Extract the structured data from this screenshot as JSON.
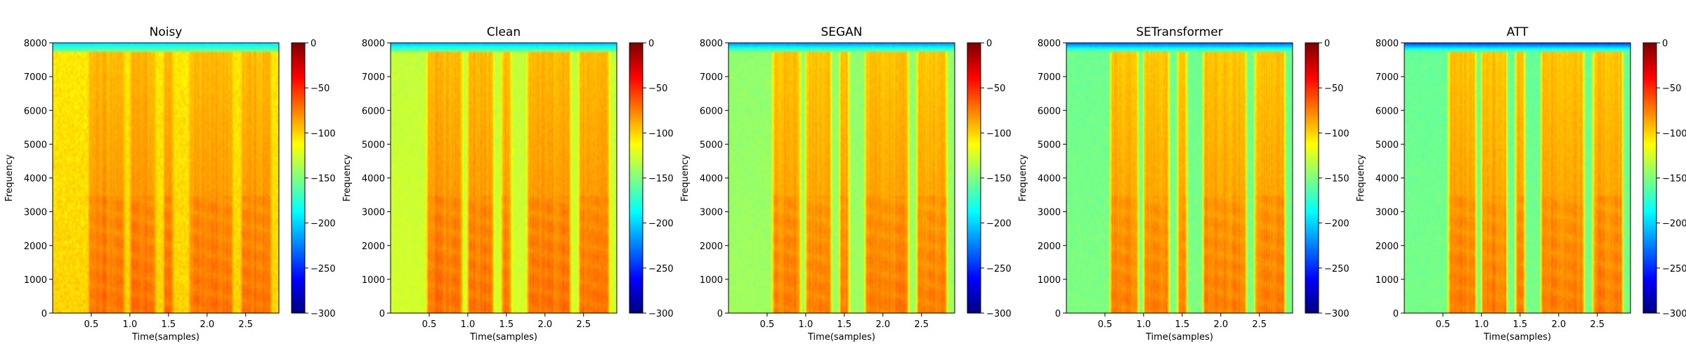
{
  "chart_data": [
    {
      "type": "heatmap",
      "title": "Noisy",
      "xlabel": "Time(samples)",
      "ylabel": "Frequency",
      "x_range": [
        0,
        2.93
      ],
      "ylim": [
        0,
        8000
      ],
      "x_ticks": [
        0.5,
        1.0,
        1.5,
        2.0,
        2.5
      ],
      "x_tick_labels": [
        "0.5",
        "1.0",
        "1.5",
        "2.0",
        "2.5"
      ],
      "y_ticks": [
        0,
        1000,
        2000,
        3000,
        4000,
        5000,
        6000,
        7000,
        8000
      ],
      "y_tick_labels": [
        "0",
        "1000",
        "2000",
        "3000",
        "4000",
        "5000",
        "6000",
        "7000",
        "8000"
      ],
      "colorbar": {
        "colormap": "jet",
        "range": [
          -300,
          0
        ],
        "ticks": [
          0,
          -50,
          -100,
          -150,
          -200,
          -250,
          -300
        ],
        "tick_labels": [
          "0",
          "−50",
          "−100",
          "−150",
          "−200",
          "−250",
          "−300"
        ]
      },
      "speech_activity": [
        [
          0.45,
          0.95
        ],
        [
          0.98,
          1.35
        ],
        [
          1.42,
          1.58
        ],
        [
          1.75,
          2.35
        ],
        [
          2.42,
          2.85
        ]
      ],
      "typical_level_db": {
        "speech": -75,
        "background": -105
      }
    },
    {
      "type": "heatmap",
      "title": "Clean",
      "xlabel": "Time(samples)",
      "ylabel": "Frequency",
      "x_range": [
        0,
        2.93
      ],
      "ylim": [
        0,
        8000
      ],
      "x_ticks": [
        0.5,
        1.0,
        1.5,
        2.0,
        2.5
      ],
      "x_tick_labels": [
        "0.5",
        "1.0",
        "1.5",
        "2.0",
        "2.5"
      ],
      "y_ticks": [
        0,
        1000,
        2000,
        3000,
        4000,
        5000,
        6000,
        7000,
        8000
      ],
      "y_tick_labels": [
        "0",
        "1000",
        "2000",
        "3000",
        "4000",
        "5000",
        "6000",
        "7000",
        "8000"
      ],
      "colorbar": {
        "colormap": "jet",
        "range": [
          -300,
          0
        ],
        "ticks": [
          0,
          -50,
          -100,
          -150,
          -200,
          -250,
          -300
        ],
        "tick_labels": [
          "0",
          "−50",
          "−100",
          "−150",
          "−200",
          "−250",
          "−300"
        ]
      },
      "speech_activity": [
        [
          0.45,
          0.95
        ],
        [
          0.98,
          1.35
        ],
        [
          1.42,
          1.58
        ],
        [
          1.75,
          2.35
        ],
        [
          2.42,
          2.85
        ]
      ],
      "typical_level_db": {
        "speech": -75,
        "background": -125
      }
    },
    {
      "type": "heatmap",
      "title": "SEGAN",
      "xlabel": "Time(samples)",
      "ylabel": "Frequency",
      "x_range": [
        0,
        2.93
      ],
      "ylim": [
        0,
        8000
      ],
      "x_ticks": [
        0.5,
        1.0,
        1.5,
        2.0,
        2.5
      ],
      "x_tick_labels": [
        "0.5",
        "1.0",
        "1.5",
        "2.0",
        "2.5"
      ],
      "y_ticks": [
        0,
        1000,
        2000,
        3000,
        4000,
        5000,
        6000,
        7000,
        8000
      ],
      "y_tick_labels": [
        "0",
        "1000",
        "2000",
        "3000",
        "4000",
        "5000",
        "6000",
        "7000",
        "8000"
      ],
      "colorbar": {
        "colormap": "jet",
        "range": [
          -300,
          0
        ],
        "ticks": [
          0,
          -50,
          -100,
          -150,
          -200,
          -250,
          -300
        ],
        "tick_labels": [
          "0",
          "−50",
          "−100",
          "−150",
          "−200",
          "−250",
          "−300"
        ]
      },
      "speech_activity": [
        [
          0.55,
          0.95
        ],
        [
          0.98,
          1.35
        ],
        [
          1.42,
          1.58
        ],
        [
          1.75,
          2.35
        ],
        [
          2.42,
          2.85
        ]
      ],
      "typical_level_db": {
        "speech": -78,
        "background": -140
      }
    },
    {
      "type": "heatmap",
      "title": "SETransformer",
      "xlabel": "Time(samples)",
      "ylabel": "Frequency",
      "x_range": [
        0,
        2.93
      ],
      "ylim": [
        0,
        8000
      ],
      "x_ticks": [
        0.5,
        1.0,
        1.5,
        2.0,
        2.5
      ],
      "x_tick_labels": [
        "0.5",
        "1.0",
        "1.5",
        "2.0",
        "2.5"
      ],
      "y_ticks": [
        0,
        1000,
        2000,
        3000,
        4000,
        5000,
        6000,
        7000,
        8000
      ],
      "y_tick_labels": [
        "0",
        "1000",
        "2000",
        "3000",
        "4000",
        "5000",
        "6000",
        "7000",
        "8000"
      ],
      "colorbar": {
        "colormap": "jet",
        "range": [
          -300,
          0
        ],
        "ticks": [
          0,
          -50,
          -100,
          -150,
          -200,
          -250,
          -300
        ],
        "tick_labels": [
          "0",
          "−50",
          "−100",
          "−150",
          "−200",
          "−250",
          "−300"
        ]
      },
      "speech_activity": [
        [
          0.55,
          0.95
        ],
        [
          0.98,
          1.35
        ],
        [
          1.42,
          1.58
        ],
        [
          1.75,
          2.35
        ],
        [
          2.42,
          2.85
        ]
      ],
      "typical_level_db": {
        "speech": -78,
        "background": -150
      }
    },
    {
      "type": "heatmap",
      "title": "ATT",
      "xlabel": "Time(samples)",
      "ylabel": "Frequency",
      "x_range": [
        0,
        2.93
      ],
      "ylim": [
        0,
        8000
      ],
      "x_ticks": [
        0.5,
        1.0,
        1.5,
        2.0,
        2.5
      ],
      "x_tick_labels": [
        "0.5",
        "1.0",
        "1.5",
        "2.0",
        "2.5"
      ],
      "y_ticks": [
        0,
        1000,
        2000,
        3000,
        4000,
        5000,
        6000,
        7000,
        8000
      ],
      "y_tick_labels": [
        "0",
        "1000",
        "2000",
        "3000",
        "4000",
        "5000",
        "6000",
        "7000",
        "8000"
      ],
      "colorbar": {
        "colormap": "jet",
        "range": [
          -300,
          0
        ],
        "ticks": [
          0,
          -50,
          -100,
          -150,
          -200,
          -250,
          -300
        ],
        "tick_labels": [
          "0",
          "−50",
          "−100",
          "−150",
          "−200",
          "−250",
          "−300"
        ]
      },
      "speech_activity": [
        [
          0.55,
          0.95
        ],
        [
          0.98,
          1.35
        ],
        [
          1.42,
          1.58
        ],
        [
          1.75,
          2.35
        ],
        [
          2.42,
          2.85
        ]
      ],
      "typical_level_db": {
        "speech": -78,
        "background": -152
      }
    }
  ]
}
